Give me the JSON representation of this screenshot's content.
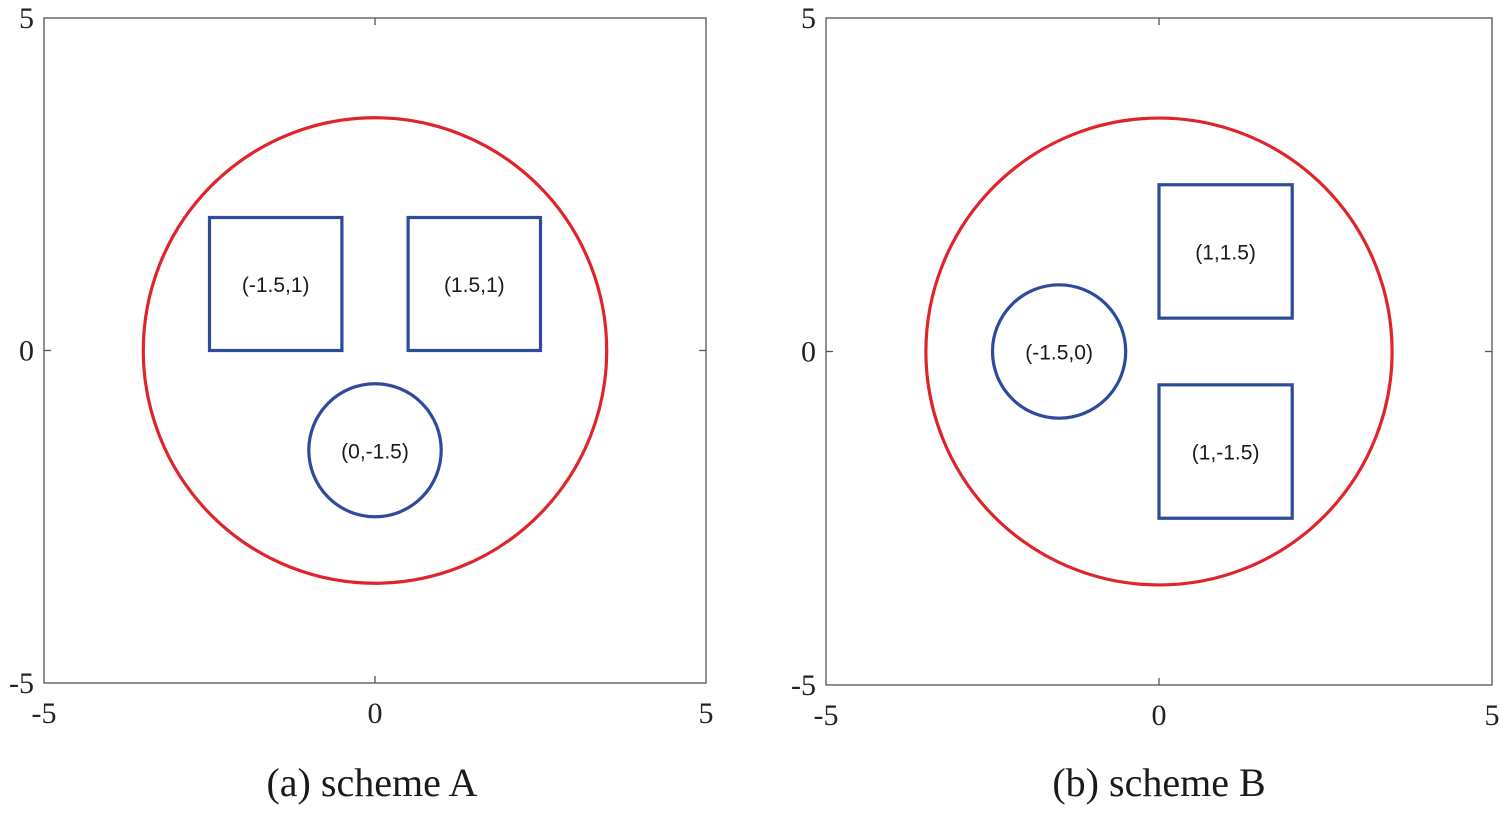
{
  "colors": {
    "domain_boundary": "#e0242c",
    "obstacle": "#2e4a9a",
    "frame": "#555555"
  },
  "panels": [
    {
      "caption": "(a) scheme A",
      "axes": {
        "xlim": [
          -5,
          5
        ],
        "ylim": [
          -5,
          5
        ],
        "x_ticks": [
          {
            "value": -5,
            "label": "-5"
          },
          {
            "value": 0,
            "label": "0"
          },
          {
            "value": 5,
            "label": "5"
          }
        ],
        "y_ticks": [
          {
            "value": 5,
            "label": "5"
          },
          {
            "value": 0,
            "label": "0"
          },
          {
            "value": -5,
            "label": "-5"
          }
        ]
      },
      "boundary": {
        "shape": "circle",
        "cx": 0,
        "cy": 0,
        "r": 3.5
      },
      "obstacles": [
        {
          "shape": "square",
          "x0": -2.5,
          "x1": -0.5,
          "y0": 0,
          "y1": 2,
          "label": "(-1.5,1)",
          "label_x": -1.5,
          "label_y": 1
        },
        {
          "shape": "square",
          "x0": 0.5,
          "x1": 2.5,
          "y0": 0,
          "y1": 2,
          "label": "(1.5,1)",
          "label_x": 1.5,
          "label_y": 1
        },
        {
          "shape": "circle",
          "cx": 0,
          "cy": -1.5,
          "r": 1,
          "label": "(0,-1.5)",
          "label_x": 0,
          "label_y": -1.5
        }
      ]
    },
    {
      "caption": "(b) scheme B",
      "axes": {
        "xlim": [
          -5,
          5
        ],
        "ylim": [
          -5,
          5
        ],
        "x_ticks": [
          {
            "value": -5,
            "label": "-5"
          },
          {
            "value": 0,
            "label": "0"
          },
          {
            "value": 5,
            "label": "5"
          }
        ],
        "y_ticks": [
          {
            "value": 5,
            "label": "5"
          },
          {
            "value": 0,
            "label": "0"
          },
          {
            "value": -5,
            "label": "-5"
          }
        ]
      },
      "boundary": {
        "shape": "circle",
        "cx": 0,
        "cy": 0,
        "r": 3.5
      },
      "obstacles": [
        {
          "shape": "square",
          "x0": 0,
          "x1": 2,
          "y0": 0.5,
          "y1": 2.5,
          "label": "(1,1.5)",
          "label_x": 1,
          "label_y": 1.5
        },
        {
          "shape": "square",
          "x0": 0,
          "x1": 2,
          "y0": -2.5,
          "y1": -0.5,
          "label": "(1,-1.5)",
          "label_x": 1,
          "label_y": -1.5
        },
        {
          "shape": "circle",
          "cx": -1.5,
          "cy": 0,
          "r": 1,
          "label": "(-1.5,0)",
          "label_x": -1.5,
          "label_y": 0
        }
      ]
    }
  ]
}
